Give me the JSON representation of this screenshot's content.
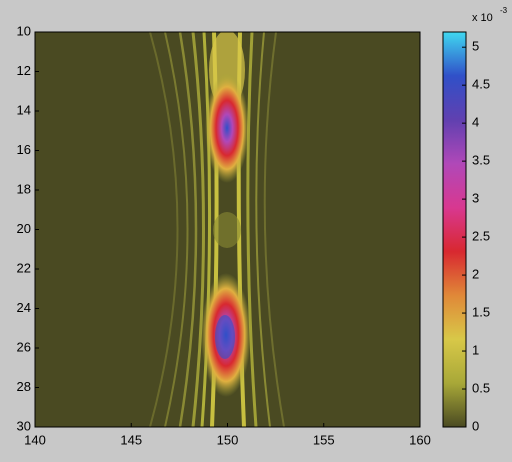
{
  "chart_data": {
    "type": "heatmap",
    "xlim": [
      140,
      160
    ],
    "xticks": [
      140,
      145,
      150,
      155,
      160
    ],
    "ylim": [
      10,
      30
    ],
    "yticks": [
      10,
      12,
      14,
      16,
      18,
      20,
      22,
      24,
      26,
      28,
      30
    ],
    "clim": [
      0,
      5.2
    ],
    "cticks": [
      0,
      0.5,
      1,
      1.5,
      2,
      2.5,
      3,
      3.5,
      4,
      4.5,
      5
    ],
    "colorbar_scale_label": "x 10",
    "colorbar_scale_exponent": "-3",
    "colormap": [
      "#4a4a22",
      "#a8a838",
      "#d8c848",
      "#e08838",
      "#d82830",
      "#d83890",
      "#b048b8",
      "#6040b0",
      "#3050c8",
      "#40d8f0"
    ]
  }
}
